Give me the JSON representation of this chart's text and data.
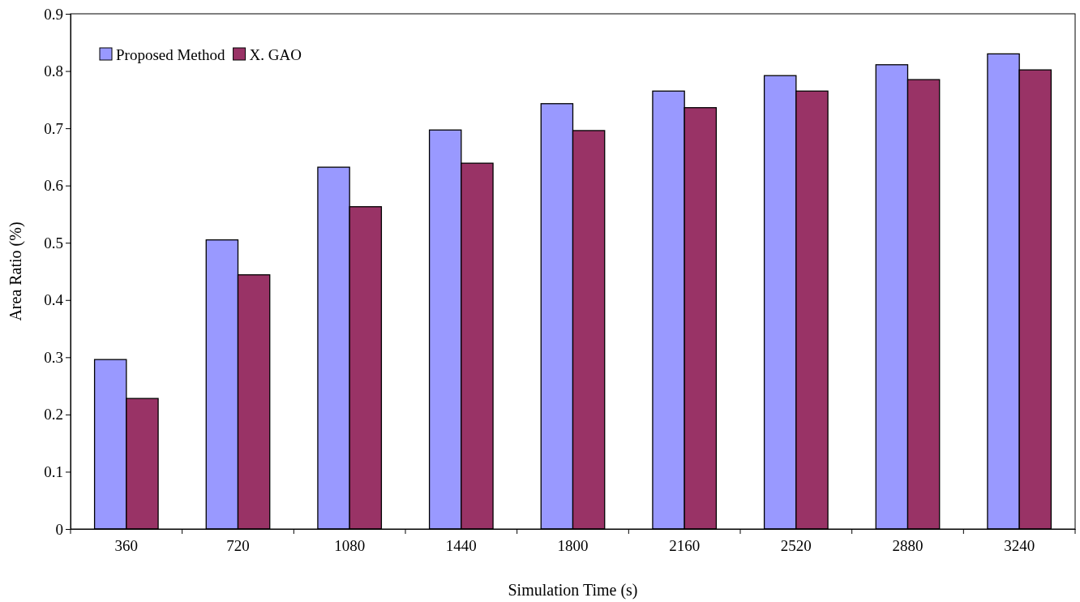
{
  "chart_data": {
    "type": "bar",
    "xlabel": "Simulation Time (s)",
    "ylabel": "Area Ratio (%)",
    "categories": [
      "360",
      "720",
      "1080",
      "1440",
      "1800",
      "2160",
      "2520",
      "2880",
      "3240"
    ],
    "series": [
      {
        "name": "Proposed Method",
        "color": "#9999ff",
        "values": [
          0.296,
          0.505,
          0.632,
          0.697,
          0.743,
          0.765,
          0.792,
          0.811,
          0.83
        ]
      },
      {
        "name": "X. GAO",
        "color": "#993366",
        "values": [
          0.228,
          0.444,
          0.563,
          0.639,
          0.696,
          0.736,
          0.765,
          0.785,
          0.802
        ]
      }
    ],
    "ylim": [
      0,
      0.9
    ],
    "yticks": [
      0,
      0.1,
      0.2,
      0.3,
      0.4,
      0.5,
      0.6,
      0.7,
      0.8,
      0.9
    ],
    "grid": false,
    "legend": "top left"
  }
}
